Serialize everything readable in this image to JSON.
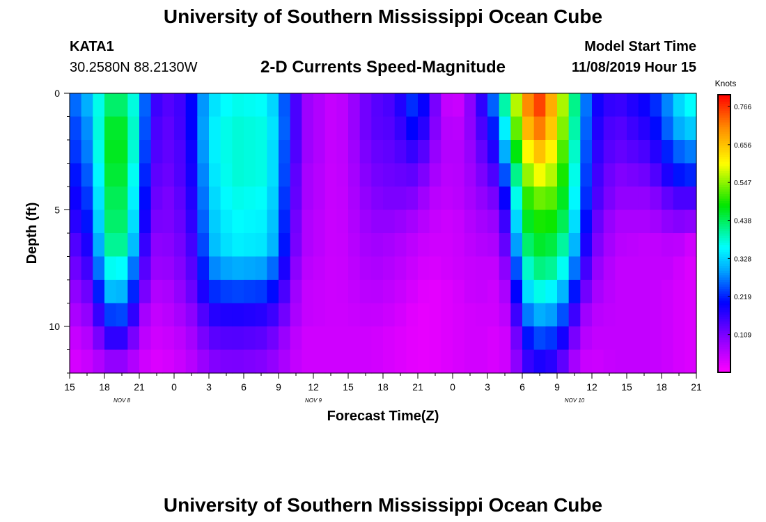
{
  "page": {
    "title_top": "University of Southern Mississippi Ocean Cube",
    "title_bottom": "University of Southern Mississippi Ocean Cube",
    "station_id": "KATA1",
    "coords": "30.2580N 88.2130W",
    "model_start_label": "Model Start Time",
    "model_start_value": "11/08/2019 Hour 15"
  },
  "chart_data": {
    "type": "heatmap",
    "title": "2-D Currents Speed-Magnitude",
    "xlabel": "Forecast Time(Z)",
    "ylabel": "Depth (ft)",
    "x_tick_labels": [
      "15",
      "18",
      "21",
      "0",
      "3",
      "6",
      "9",
      "12",
      "15",
      "18",
      "21",
      "0",
      "3",
      "6",
      "9",
      "12",
      "15",
      "18",
      "21"
    ],
    "date_labels": [
      {
        "text": "NOV 8",
        "tick_index": 1.5
      },
      {
        "text": "NOV 9",
        "tick_index": 7
      },
      {
        "text": "NOV 10",
        "tick_index": 14.5
      }
    ],
    "y_tick_labels": [
      "0",
      "5",
      "10"
    ],
    "y_tick_values": [
      0,
      5,
      10
    ],
    "ylim": [
      0,
      12
    ],
    "x_hours_range": [
      0,
      54
    ],
    "colorbar": {
      "unit": "Knots",
      "min": 0.0,
      "max": 0.8,
      "tick_values": [
        0.766,
        0.656,
        0.547,
        0.438,
        0.328,
        0.219,
        0.109
      ],
      "tick_labels": [
        "0.766",
        "0.656",
        "0.547",
        "0.438",
        "0.328",
        "0.219",
        "0.109"
      ]
    },
    "depth_levels_ft": [
      0.5,
      1.5,
      2.5,
      3.5,
      4.5,
      5.5,
      6.5,
      7.5,
      8.5,
      9.5,
      10.5,
      11.5
    ],
    "speed_profiles_knots": [
      {
        "hour": 0,
        "values": [
          0.24,
          0.22,
          0.21,
          0.19,
          0.17,
          0.15,
          0.12,
          0.1,
          0.08,
          0.06,
          0.04,
          0.03
        ]
      },
      {
        "hour": 2,
        "values": [
          0.32,
          0.3,
          0.29,
          0.27,
          0.25,
          0.23,
          0.2,
          0.17,
          0.13,
          0.1,
          0.07,
          0.05
        ]
      },
      {
        "hour": 3,
        "values": [
          0.42,
          0.45,
          0.45,
          0.44,
          0.43,
          0.42,
          0.4,
          0.36,
          0.3,
          0.22,
          0.15,
          0.08
        ]
      },
      {
        "hour": 4,
        "values": [
          0.44,
          0.47,
          0.48,
          0.47,
          0.45,
          0.44,
          0.42,
          0.37,
          0.32,
          0.25,
          0.18,
          0.1
        ]
      },
      {
        "hour": 5,
        "values": [
          0.42,
          0.45,
          0.45,
          0.44,
          0.43,
          0.42,
          0.4,
          0.35,
          0.29,
          0.23,
          0.15,
          0.08
        ]
      },
      {
        "hour": 6,
        "values": [
          0.33,
          0.32,
          0.31,
          0.29,
          0.27,
          0.25,
          0.22,
          0.18,
          0.15,
          0.1,
          0.07,
          0.05
        ]
      },
      {
        "hour": 7,
        "values": [
          0.18,
          0.17,
          0.16,
          0.15,
          0.14,
          0.12,
          0.1,
          0.09,
          0.07,
          0.05,
          0.04,
          0.03
        ]
      },
      {
        "hour": 8,
        "values": [
          0.13,
          0.12,
          0.12,
          0.11,
          0.1,
          0.1,
          0.09,
          0.08,
          0.06,
          0.05,
          0.04,
          0.03
        ]
      },
      {
        "hour": 10,
        "values": [
          0.16,
          0.16,
          0.15,
          0.15,
          0.14,
          0.13,
          0.12,
          0.11,
          0.1,
          0.08,
          0.06,
          0.05
        ]
      },
      {
        "hour": 11,
        "values": [
          0.24,
          0.24,
          0.23,
          0.22,
          0.21,
          0.2,
          0.18,
          0.16,
          0.14,
          0.11,
          0.09,
          0.07
        ]
      },
      {
        "hour": 12,
        "values": [
          0.33,
          0.34,
          0.34,
          0.33,
          0.32,
          0.31,
          0.3,
          0.27,
          0.22,
          0.17,
          0.13,
          0.1
        ]
      },
      {
        "hour": 14,
        "values": [
          0.37,
          0.38,
          0.38,
          0.38,
          0.37,
          0.36,
          0.35,
          0.3,
          0.24,
          0.18,
          0.14,
          0.11
        ]
      },
      {
        "hour": 17,
        "values": [
          0.36,
          0.37,
          0.37,
          0.37,
          0.36,
          0.35,
          0.34,
          0.29,
          0.23,
          0.17,
          0.13,
          0.1
        ]
      },
      {
        "hour": 18,
        "values": [
          0.3,
          0.31,
          0.3,
          0.3,
          0.29,
          0.28,
          0.27,
          0.23,
          0.18,
          0.14,
          0.1,
          0.08
        ]
      },
      {
        "hour": 19,
        "values": [
          0.2,
          0.2,
          0.19,
          0.18,
          0.17,
          0.16,
          0.15,
          0.13,
          0.11,
          0.09,
          0.07,
          0.06
        ]
      },
      {
        "hour": 20,
        "values": [
          0.09,
          0.09,
          0.09,
          0.08,
          0.08,
          0.07,
          0.07,
          0.06,
          0.05,
          0.05,
          0.04,
          0.04
        ]
      },
      {
        "hour": 23,
        "values": [
          0.04,
          0.04,
          0.04,
          0.04,
          0.04,
          0.04,
          0.04,
          0.04,
          0.04,
          0.04,
          0.04,
          0.04
        ]
      },
      {
        "hour": 26,
        "values": [
          0.13,
          0.13,
          0.12,
          0.11,
          0.1,
          0.09,
          0.08,
          0.07,
          0.06,
          0.05,
          0.04,
          0.04
        ]
      },
      {
        "hour": 28,
        "values": [
          0.15,
          0.14,
          0.13,
          0.12,
          0.11,
          0.09,
          0.07,
          0.06,
          0.05,
          0.04,
          0.03,
          0.03
        ]
      },
      {
        "hour": 30,
        "values": [
          0.25,
          0.22,
          0.17,
          0.13,
          0.1,
          0.07,
          0.05,
          0.04,
          0.03,
          0.02,
          0.02,
          0.02
        ]
      },
      {
        "hour": 31,
        "values": [
          0.14,
          0.12,
          0.1,
          0.08,
          0.06,
          0.05,
          0.04,
          0.03,
          0.02,
          0.02,
          0.02,
          0.02
        ]
      },
      {
        "hour": 33,
        "values": [
          0.02,
          0.04,
          0.05,
          0.05,
          0.05,
          0.04,
          0.04,
          0.04,
          0.03,
          0.03,
          0.03,
          0.03
        ]
      },
      {
        "hour": 35,
        "values": [
          0.12,
          0.11,
          0.1,
          0.09,
          0.08,
          0.07,
          0.06,
          0.05,
          0.05,
          0.04,
          0.04,
          0.04
        ]
      },
      {
        "hour": 37,
        "values": [
          0.3,
          0.25,
          0.2,
          0.16,
          0.12,
          0.09,
          0.07,
          0.05,
          0.04,
          0.04,
          0.03,
          0.03
        ]
      },
      {
        "hour": 38,
        "values": [
          0.5,
          0.45,
          0.4,
          0.33,
          0.27,
          0.22,
          0.18,
          0.14,
          0.1,
          0.07,
          0.05,
          0.05
        ]
      },
      {
        "hour": 39,
        "values": [
          0.63,
          0.6,
          0.55,
          0.5,
          0.47,
          0.44,
          0.4,
          0.35,
          0.3,
          0.24,
          0.18,
          0.14
        ]
      },
      {
        "hour": 40,
        "values": [
          0.78,
          0.73,
          0.66,
          0.6,
          0.53,
          0.49,
          0.46,
          0.42,
          0.37,
          0.3,
          0.24,
          0.18
        ]
      },
      {
        "hour": 41,
        "values": [
          0.73,
          0.7,
          0.65,
          0.59,
          0.53,
          0.49,
          0.46,
          0.42,
          0.37,
          0.3,
          0.24,
          0.18
        ]
      },
      {
        "hour": 42,
        "values": [
          0.62,
          0.6,
          0.57,
          0.54,
          0.51,
          0.48,
          0.44,
          0.4,
          0.34,
          0.28,
          0.22,
          0.16
        ]
      },
      {
        "hour": 43,
        "values": [
          0.5,
          0.48,
          0.46,
          0.44,
          0.42,
          0.4,
          0.37,
          0.33,
          0.27,
          0.21,
          0.15,
          0.1
        ]
      },
      {
        "hour": 44,
        "values": [
          0.33,
          0.32,
          0.31,
          0.3,
          0.29,
          0.27,
          0.24,
          0.2,
          0.15,
          0.1,
          0.07,
          0.05
        ]
      },
      {
        "hour": 45,
        "values": [
          0.2,
          0.19,
          0.18,
          0.17,
          0.16,
          0.14,
          0.12,
          0.1,
          0.08,
          0.06,
          0.05,
          0.04
        ]
      },
      {
        "hour": 47,
        "values": [
          0.15,
          0.13,
          0.12,
          0.1,
          0.09,
          0.07,
          0.06,
          0.05,
          0.05,
          0.05,
          0.05,
          0.05
        ]
      },
      {
        "hour": 50,
        "values": [
          0.2,
          0.18,
          0.15,
          0.12,
          0.09,
          0.07,
          0.05,
          0.05,
          0.05,
          0.05,
          0.05,
          0.05
        ]
      },
      {
        "hour": 52,
        "values": [
          0.3,
          0.28,
          0.24,
          0.2,
          0.14,
          0.1,
          0.06,
          0.05,
          0.04,
          0.04,
          0.04,
          0.04
        ]
      },
      {
        "hour": 53,
        "values": [
          0.36,
          0.32,
          0.27,
          0.22,
          0.15,
          0.1,
          0.05,
          0.03,
          0.03,
          0.03,
          0.03,
          0.03
        ]
      },
      {
        "hour": 54,
        "values": [
          0.36,
          0.32,
          0.27,
          0.22,
          0.14,
          0.09,
          0.03,
          0.03,
          0.03,
          0.03,
          0.03,
          0.03
        ]
      }
    ]
  }
}
